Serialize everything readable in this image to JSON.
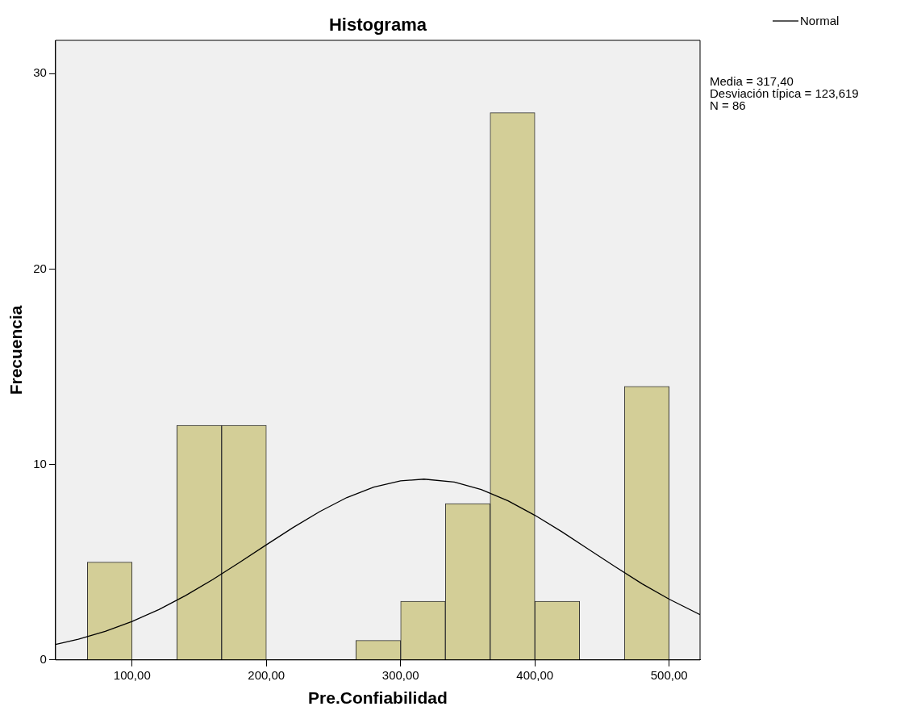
{
  "chart_data": {
    "type": "histogram",
    "title": "Histograma",
    "xlabel": "Pre.Confiabilidad",
    "ylabel": "Frecuencia",
    "bins": [
      66.67,
      100,
      133.33,
      166.67,
      200,
      233.33,
      266.67,
      300,
      333.33,
      366.67,
      400,
      433.33,
      466.67,
      500
    ],
    "values": [
      5,
      0,
      12,
      12,
      0,
      0,
      1,
      3,
      8,
      28,
      3,
      0,
      14
    ],
    "color": "#d3ce97",
    "series": [
      {
        "name": "Normal",
        "type": "line",
        "color": "#000000",
        "marker": "none",
        "x": [
          43,
          60,
          80,
          100,
          120,
          140,
          160,
          180,
          200,
          220,
          240,
          260,
          280,
          300,
          317.4,
          340,
          360,
          380,
          400,
          420,
          440,
          460,
          480,
          500,
          523
        ],
        "values": [
          0.79,
          1.06,
          1.46,
          1.97,
          2.58,
          3.3,
          4.11,
          4.99,
          5.89,
          6.78,
          7.6,
          8.31,
          8.84,
          9.16,
          9.25,
          9.1,
          8.72,
          8.14,
          7.4,
          6.56,
          5.66,
          4.76,
          3.89,
          3.11,
          2.32
        ]
      }
    ],
    "xlim": [
      43,
      523
    ],
    "ylim": [
      0,
      31.7
    ],
    "xticks": [
      {
        "value": 100,
        "label": "100,00"
      },
      {
        "value": 200,
        "label": "200,00"
      },
      {
        "value": 300,
        "label": "300,00"
      },
      {
        "value": 400,
        "label": "400,00"
      },
      {
        "value": 500,
        "label": "500,00"
      }
    ],
    "yticks": [
      0,
      10,
      20,
      30
    ],
    "grid": false,
    "legend": "top right",
    "annotations": [
      "Media = 317,40",
      "Desviación típica = 123,619",
      "N = 86"
    ]
  }
}
